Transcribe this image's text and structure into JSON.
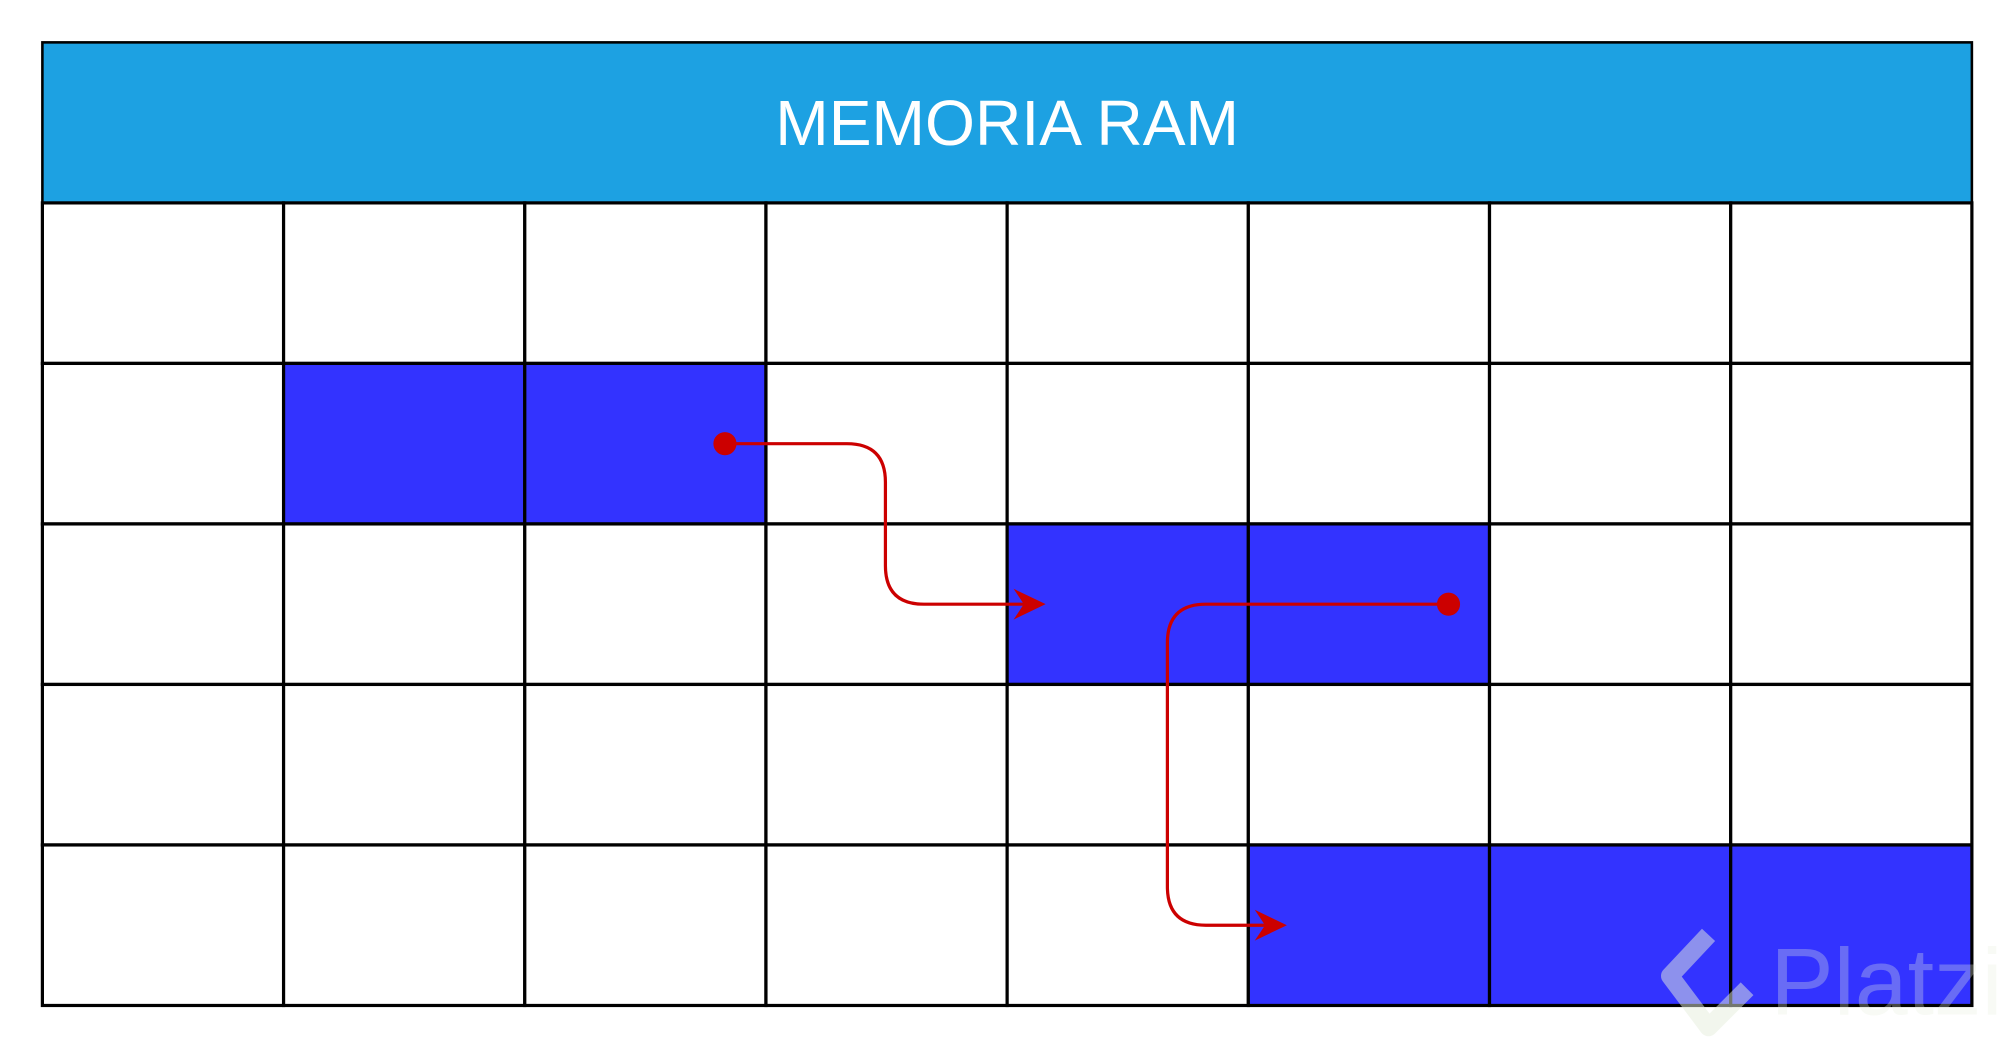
{
  "diagram": {
    "title": "MEMORIA RAM",
    "rows": 5,
    "columns": 8,
    "highlighted_cells": [
      {
        "row": 1,
        "col": 1
      },
      {
        "row": 1,
        "col": 2
      },
      {
        "row": 2,
        "col": 4
      },
      {
        "row": 2,
        "col": 5
      },
      {
        "row": 4,
        "col": 5
      },
      {
        "row": 4,
        "col": 6
      },
      {
        "row": 4,
        "col": 7
      }
    ],
    "pointers": [
      {
        "from": {
          "row": 1,
          "col": 2
        },
        "to": {
          "row": 2,
          "col": 4
        }
      },
      {
        "from": {
          "row": 2,
          "col": 5
        },
        "to": {
          "row": 4,
          "col": 5
        }
      }
    ],
    "colors": {
      "header": "#1da1e2",
      "highlight": "#3333ff",
      "cell": "#ffffff",
      "border": "#000000",
      "pointer": "#cc0000"
    }
  },
  "watermark": {
    "text": "Platzi"
  }
}
